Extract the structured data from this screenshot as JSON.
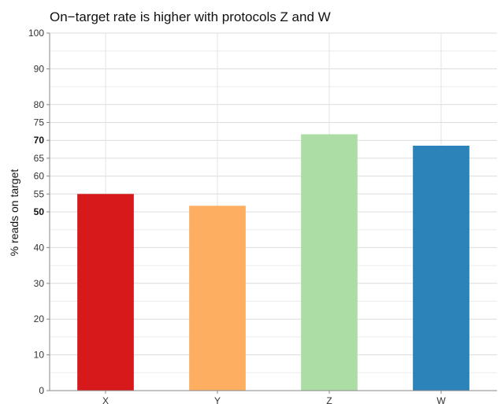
{
  "chart_data": {
    "type": "bar",
    "title": "On−target rate is higher with protocols Z and W",
    "xlabel": "",
    "ylabel": "% reads on target",
    "categories": [
      "X",
      "Y",
      "Z",
      "W"
    ],
    "values": [
      55,
      51.7,
      71.7,
      68.5
    ],
    "colors": [
      "#d7191c",
      "#fdae61",
      "#abdda4",
      "#2b83ba"
    ],
    "ylim": [
      0,
      100
    ],
    "yticks": [
      0,
      10,
      20,
      30,
      40,
      50,
      55,
      60,
      65,
      70,
      75,
      80,
      90,
      100
    ],
    "yticks_bold": [
      50,
      70
    ],
    "ygrid_minor": [
      5,
      15,
      25,
      35,
      45,
      85,
      95
    ],
    "grid": true,
    "legend": "none"
  }
}
